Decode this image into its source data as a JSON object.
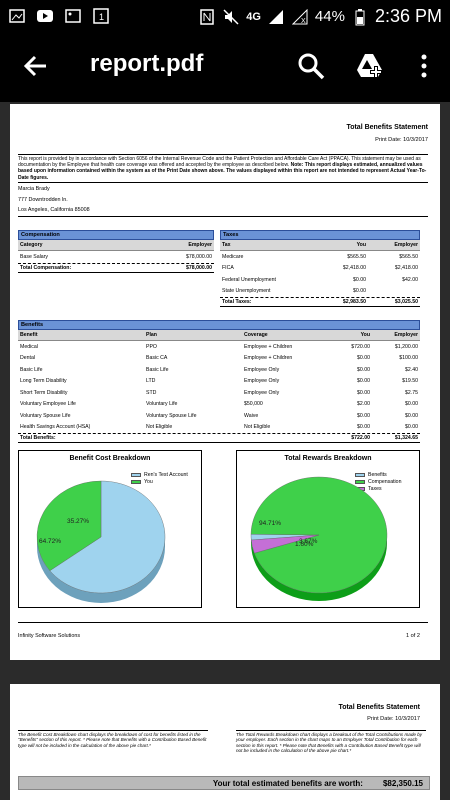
{
  "status_bar": {
    "battery": "44%",
    "time": "2:36 PM",
    "network": "4G"
  },
  "app_bar": {
    "title": "report.pdf"
  },
  "page1": {
    "title": "Total Benefits Statement",
    "print_date": "Print Date: 10/3/2017",
    "intro_text": "This report is provided by  in accordance with Section 6056 of the Internal Revenue Code and the Patient Protection and Affordable Care Act (PPACA). This statement may be used as documentation by the Employee that health care coverage was offered and accepted by the employee as described below.",
    "intro_note_label": "Note:",
    "intro_note_text": "This report displays estimated, annualized values based upon information contained within the system as of the Print Date shown above.  The values displayed within this report are not intended to represent Actual Year-To-Date figures.",
    "address": {
      "name": "Marcia Brady",
      "line1": "777 Downtrodden ln.",
      "line2": "Los Angeles, California 85008"
    },
    "compensation": {
      "heading": "Compensation",
      "columns": [
        "Category",
        "Employer"
      ],
      "rows": [
        {
          "category": "Base Salary",
          "employer": "$78,000.00"
        }
      ],
      "total_label": "Total Compensation:",
      "total_employer": "$78,000.00"
    },
    "taxes": {
      "heading": "Taxes",
      "columns": [
        "Tax",
        "You",
        "Employer"
      ],
      "rows": [
        {
          "tax": "Medicare",
          "you": "$565.50",
          "employer": "$565.50"
        },
        {
          "tax": "FICA",
          "you": "$2,418.00",
          "employer": "$2,418.00"
        },
        {
          "tax": "Federal Unemployment",
          "you": "$0.00",
          "employer": "$42.00"
        },
        {
          "tax": "State Unemployment",
          "you": "$0.00",
          "employer": ""
        }
      ],
      "total_label": "Total Taxes:",
      "total_you": "$2,983.50",
      "total_employer": "$3,025.50"
    },
    "benefits": {
      "heading": "Benefits",
      "columns": [
        "Benefit",
        "Plan",
        "Coverage",
        "You",
        "Employer"
      ],
      "rows": [
        {
          "benefit": "Medical",
          "plan": "PPO",
          "coverage": "Employee + Children",
          "you": "$720.00",
          "employer": "$1,200.00"
        },
        {
          "benefit": "Dental",
          "plan": "Basic CA",
          "coverage": "Employee + Children",
          "you": "$0.00",
          "employer": "$100.00"
        },
        {
          "benefit": "Basic Life",
          "plan": "Basic Life",
          "coverage": "Employee Only",
          "you": "$0.00",
          "employer": "$2.40"
        },
        {
          "benefit": "Long Term Disability",
          "plan": "LTD",
          "coverage": "Employee Only",
          "you": "$0.00",
          "employer": "$19.50"
        },
        {
          "benefit": "Short Term Disability",
          "plan": "STD",
          "coverage": "Employee Only",
          "you": "$0.00",
          "employer": "$2.75"
        },
        {
          "benefit": "Voluntary Employee Life",
          "plan": "Voluntary Life",
          "coverage": "$50,000",
          "you": "$2.00",
          "employer": "$0.00"
        },
        {
          "benefit": "Voluntary Spouse Life",
          "plan": "Voluntary Spouse Life",
          "coverage": "Waive",
          "you": "$0.00",
          "employer": "$0.00"
        },
        {
          "benefit": "Health Savings Account (HSA)",
          "plan": "Not Eligible",
          "coverage": "Not Eligible",
          "you": "$0.00",
          "employer": "$0.00"
        }
      ],
      "total_label": "Total Benefits:",
      "total_you": "$722.00",
      "total_employer": "$1,324.65"
    },
    "footer_left": "Infinity Software Solutions",
    "footer_right": "1 of 2"
  },
  "chart_data": [
    {
      "type": "pie",
      "title": "Benefit Cost Breakdown",
      "labels": [
        "Ren's Test Account",
        "You"
      ],
      "values": [
        64.72,
        35.27
      ],
      "data_labels": [
        "64.72%",
        "35.27%"
      ],
      "colors": [
        "#9fd3ee",
        "#3fd04a"
      ],
      "legend": "top-right"
    },
    {
      "type": "pie",
      "title": "Total Rewards Breakdown",
      "labels": [
        "Benefits",
        "Compensation",
        "Taxes"
      ],
      "values": [
        1.6,
        94.71,
        3.67
      ],
      "data_labels": [
        "1.60%",
        "94.71%",
        "3.67%"
      ],
      "colors": [
        "#9fd3ee",
        "#3fd04a",
        "#c46fd6"
      ],
      "legend": "top-right"
    }
  ],
  "page2": {
    "title": "Total Benefits Statement",
    "print_date": "Print Date: 10/3/2017",
    "note_left": "The Benefit Cost Breakdown chart displays the breakdown of cost for benefits listed in the \"Benefits\" section of this report. * Please note that Benefits with a Contribution Based Benefit type will not be included in the calculation of the above pie chart.*",
    "note_right": "The Total Rewards Breakdown chart displays a breakout of the Total Contributions made by your employer.  Each section in the chart maps to an Employer Total Contribution for each section in this report. * Please note that Benefits with a Contribution Based Benefit type will not be included in the calculation of the above pie chart.*",
    "worth_label": "Your total estimated benefits are worth:",
    "worth_value": "$82,350.15"
  }
}
